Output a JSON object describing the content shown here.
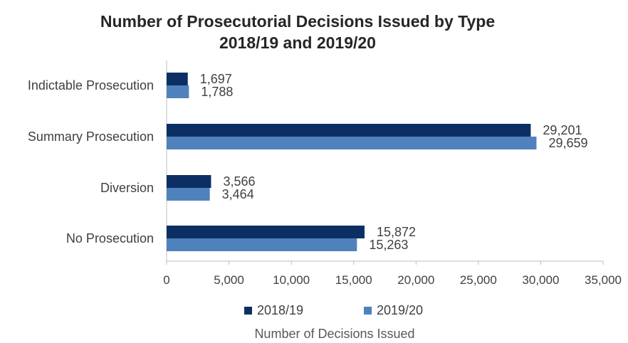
{
  "title_line1": "Number of Prosecutorial Decisions Issued by Type",
  "title_line2": "2018/19 and 2019/20",
  "chart_data": {
    "type": "bar",
    "orientation": "horizontal",
    "categories": [
      "Indictable Prosecution",
      "Summary Prosecution",
      "Diversion",
      "No Prosecution"
    ],
    "series": [
      {
        "name": "2018/19",
        "color": "#0c2f63",
        "values": [
          1697,
          29201,
          3566,
          15872
        ],
        "labels": [
          "1,697",
          "29,201",
          "3,566",
          "15,872"
        ]
      },
      {
        "name": "2019/20",
        "color": "#4f81bd",
        "values": [
          1788,
          29659,
          3464,
          15263
        ],
        "labels": [
          "1,788",
          "29,659",
          "3,464",
          "15,263"
        ]
      }
    ],
    "xlim": [
      0,
      35000
    ],
    "xticks": [
      0,
      5000,
      10000,
      15000,
      20000,
      25000,
      30000,
      35000
    ],
    "xtick_labels": [
      "0",
      "5,000",
      "10,000",
      "15,000",
      "20,000",
      "25,000",
      "30,000",
      "35,000"
    ],
    "xlabel": "Number  of Decisions Issued",
    "ylabel": "",
    "legend_position": "bottom",
    "grid": false
  }
}
